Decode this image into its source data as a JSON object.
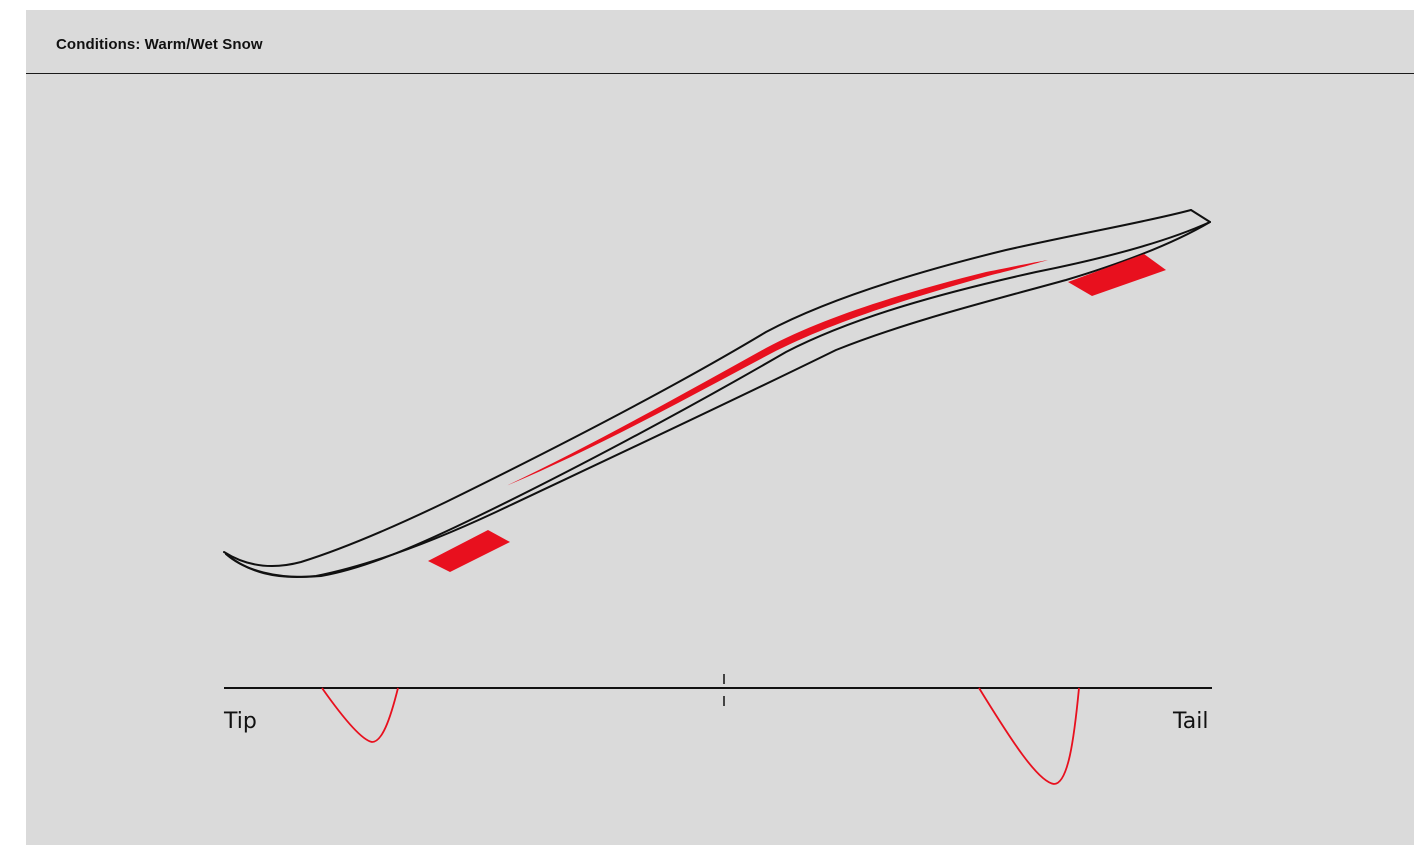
{
  "header": {
    "title": "Conditions: Warm/Wet Snow"
  },
  "profile": {
    "tip_label": "Tip",
    "tail_label": "Tail"
  },
  "colors": {
    "background": "#dadada",
    "outline": "#111111",
    "accent": "#e8101e"
  }
}
